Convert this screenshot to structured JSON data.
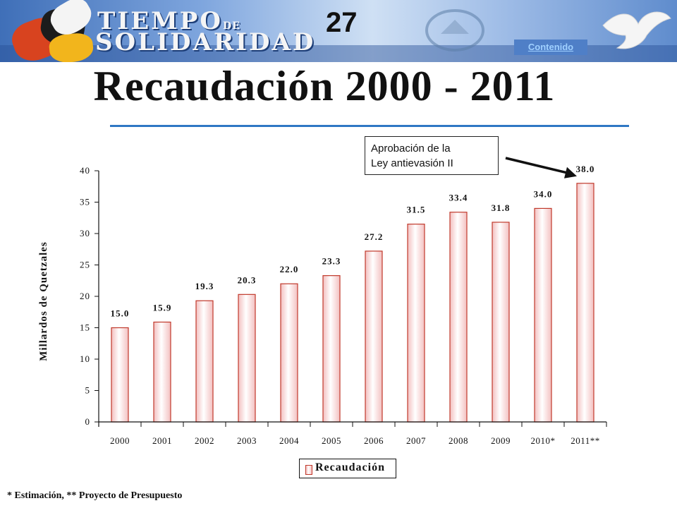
{
  "banner": {
    "logo_line1": "TIEMPO",
    "logo_line1_small": "DE",
    "logo_line2": "SOLIDARIDAD",
    "slide_number": "27",
    "contents_link": "Contenido"
  },
  "slide": {
    "title": "Recaudación 2000 - 2011"
  },
  "annotation": {
    "line1": "Aprobación de la",
    "line2": "Ley antievasión II"
  },
  "footnote": "* Estimación,  ** Proyecto de Presupuesto",
  "colors": {
    "bar_edge": "#c0392b",
    "bar_fill": "#f3c0c0",
    "title_rule": "#2f78c4"
  },
  "chart_data": {
    "type": "bar",
    "categories": [
      "2000",
      "2001",
      "2002",
      "2003",
      "2004",
      "2005",
      "2006",
      "2007",
      "2008",
      "2009",
      "2010*",
      "2011**"
    ],
    "series": [
      {
        "name": "Recaudación",
        "values": [
          15.0,
          15.9,
          19.3,
          20.3,
          22.0,
          23.3,
          27.2,
          31.5,
          33.4,
          31.8,
          34.0,
          38.0
        ]
      }
    ],
    "data_labels": [
      "15.0",
      "15.9",
      "19.3",
      "20.3",
      "22.0",
      "23.3",
      "27.2",
      "31.5",
      "33.4",
      "31.8",
      "34.0",
      "38.0"
    ],
    "ylabel": "Millardos de Quetzales",
    "ylim": [
      0,
      40
    ],
    "yticks": [
      0,
      5,
      10,
      15,
      20,
      25,
      30,
      35,
      40
    ],
    "grid": false,
    "legend": "bottom"
  }
}
